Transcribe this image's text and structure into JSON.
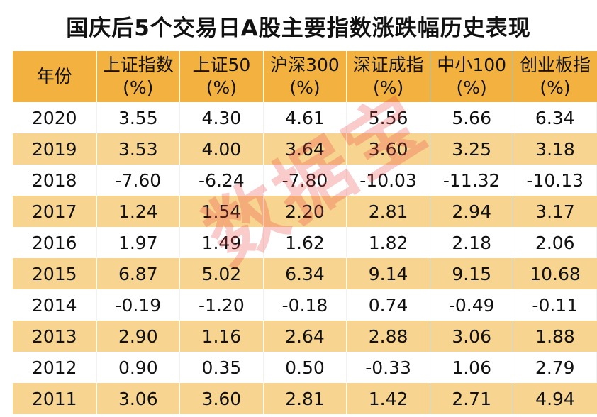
{
  "title": "国庆后5个交易日A股主要指数涨跌幅历史表现",
  "watermark": "数据宝",
  "chart_data": {
    "type": "table",
    "title": "国庆后5个交易日A股主要指数涨跌幅历史表现",
    "columns": [
      {
        "name": "年份",
        "unit": ""
      },
      {
        "name": "上证指数",
        "unit": "(%)"
      },
      {
        "name": "上证50",
        "unit": "(%)"
      },
      {
        "name": "沪深300",
        "unit": "(%)"
      },
      {
        "name": "深证成指",
        "unit": "(%)"
      },
      {
        "name": "中小100",
        "unit": "(%)"
      },
      {
        "name": "创业板指",
        "unit": "(%)"
      }
    ],
    "rows": [
      [
        "2020",
        "3.55",
        "4.30",
        "4.61",
        "5.56",
        "5.66",
        "6.34"
      ],
      [
        "2019",
        "3.53",
        "4.00",
        "3.64",
        "3.60",
        "3.25",
        "3.18"
      ],
      [
        "2018",
        "-7.60",
        "-6.24",
        "-7.80",
        "-10.03",
        "-11.32",
        "-10.13"
      ],
      [
        "2017",
        "1.24",
        "1.54",
        "2.20",
        "2.81",
        "2.94",
        "3.17"
      ],
      [
        "2016",
        "1.97",
        "1.49",
        "1.62",
        "1.82",
        "2.18",
        "2.06"
      ],
      [
        "2015",
        "6.87",
        "5.02",
        "6.34",
        "9.14",
        "9.15",
        "10.68"
      ],
      [
        "2014",
        "-0.19",
        "-1.20",
        "-0.18",
        "0.74",
        "-0.49",
        "-0.11"
      ],
      [
        "2013",
        "2.90",
        "1.16",
        "2.64",
        "2.88",
        "3.06",
        "1.88"
      ],
      [
        "2012",
        "0.90",
        "0.35",
        "0.50",
        "-0.33",
        "1.06",
        "2.79"
      ],
      [
        "2011",
        "3.06",
        "3.60",
        "2.81",
        "1.42",
        "2.71",
        "4.94"
      ]
    ]
  },
  "colors": {
    "header_bg": "#f3b23f",
    "stripe_bg": "#f7d48f",
    "row_bg": "#ffffff",
    "watermark": "#e84646"
  }
}
